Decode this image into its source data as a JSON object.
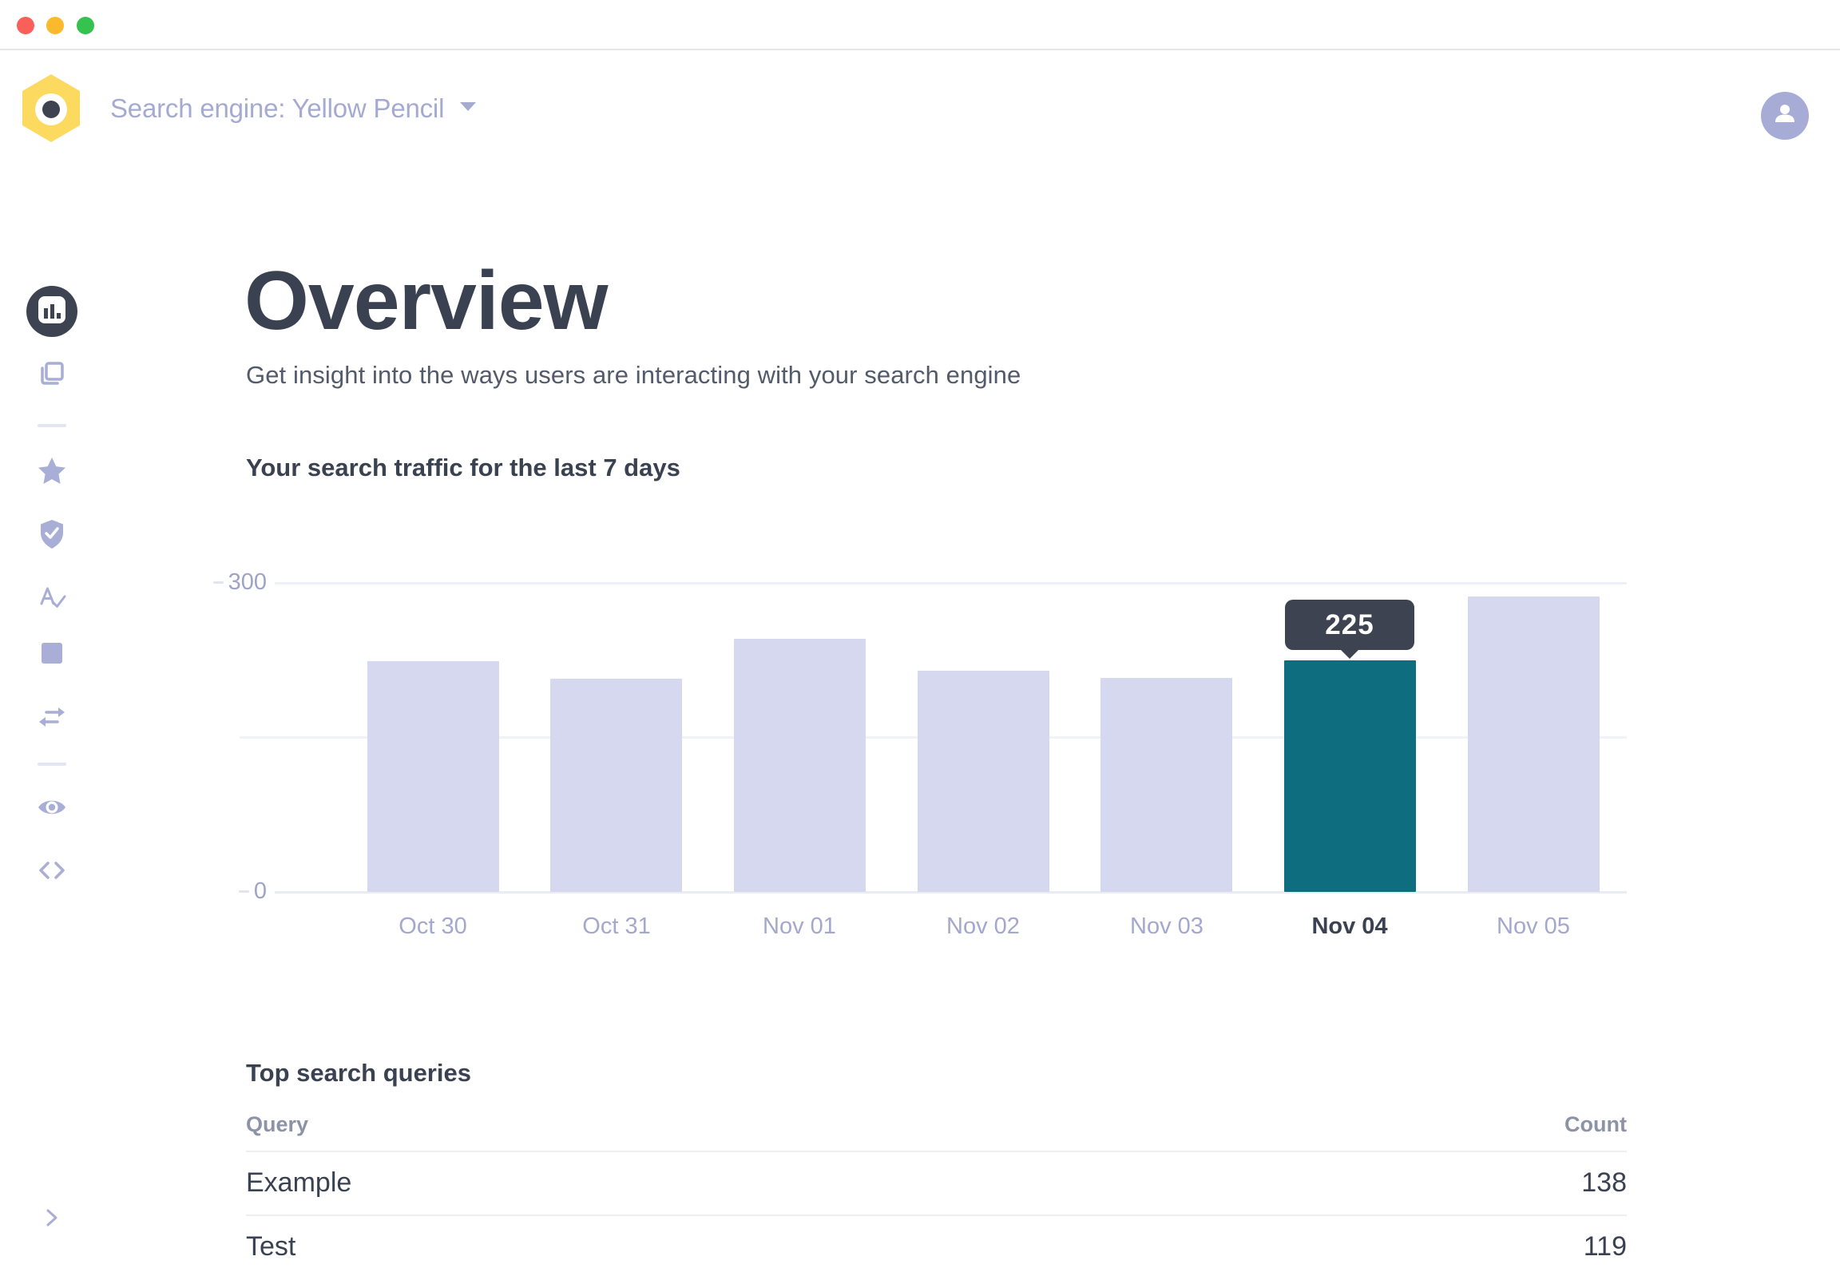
{
  "window": {
    "controls": [
      "close",
      "minimize",
      "zoom"
    ]
  },
  "header": {
    "logo_icon": "hexagon-dot-logo",
    "engine_selector": {
      "label": "Search engine: Yellow Pencil",
      "caret_icon": "caret-down-icon"
    },
    "avatar_icon": "person-icon"
  },
  "sidebar": {
    "items": [
      {
        "icon": "bar-chart-icon",
        "active": true
      },
      {
        "icon": "pages-icon",
        "active": false
      },
      {
        "icon": "star-icon",
        "active": false
      },
      {
        "icon": "shield-check-icon",
        "active": false
      },
      {
        "icon": "spellcheck-icon",
        "active": false
      },
      {
        "icon": "square-icon",
        "active": false
      },
      {
        "icon": "swap-arrows-icon",
        "active": false
      },
      {
        "icon": "eye-icon",
        "active": false
      },
      {
        "icon": "code-icon",
        "active": false
      }
    ],
    "collapse_icon": "chevron-right-icon"
  },
  "page": {
    "title": "Overview",
    "subtitle": "Get insight into the ways users are interacting with your search engine"
  },
  "chart_data": {
    "type": "bar",
    "title": "Your search traffic for the last 7 days",
    "categories": [
      "Oct 30",
      "Oct 31",
      "Nov 01",
      "Nov 02",
      "Nov 03",
      "Nov 04",
      "Nov 05"
    ],
    "values": [
      224,
      207,
      246,
      215,
      208,
      225,
      287
    ],
    "highlighted_index": 5,
    "tooltip": {
      "category": "Nov 04",
      "value": "225"
    },
    "ylim": [
      0,
      300
    ],
    "ytick_labels": [
      "0",
      "300"
    ],
    "gridlines": [
      0,
      150,
      300
    ],
    "grid": "horizontal",
    "legend": "none",
    "xlabel": "",
    "ylabel": "",
    "bar_color": "#d6d8ef",
    "highlight_color": "#0e6d7e"
  },
  "queries_table": {
    "title": "Top search queries",
    "columns": [
      "Query",
      "Count"
    ],
    "rows": [
      {
        "query": "Example",
        "count": "138"
      },
      {
        "query": "Test",
        "count": "119"
      }
    ]
  },
  "colors": {
    "accent_lavender": "#a8aed5",
    "bar_lavender": "#d6d8ef",
    "highlight_teal": "#0e6d7e",
    "tooltip_bg": "#3d4351",
    "logo_yellow": "#fcd95f",
    "heading_text": "#3a4151",
    "muted_text": "#8d93a7"
  }
}
